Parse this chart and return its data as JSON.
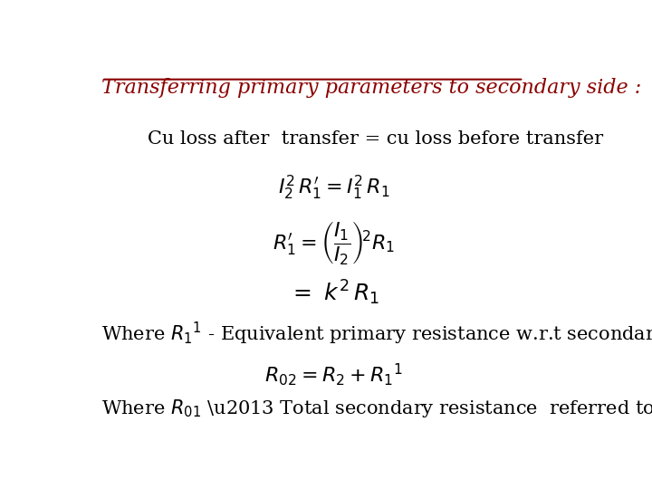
{
  "title": "Transferring primary parameters to secondary side :",
  "title_color": "#8B0000",
  "title_fontsize": 16,
  "background_color": "#ffffff",
  "line1": "Cu loss after  transfer = cu loss before transfer",
  "line1_fontsize": 15,
  "eq1_fontsize": 16,
  "eq2_fontsize": 16,
  "eq3_fontsize": 18,
  "line2_fontsize": 15,
  "eq4_fontsize": 16,
  "line3_fontsize": 15
}
